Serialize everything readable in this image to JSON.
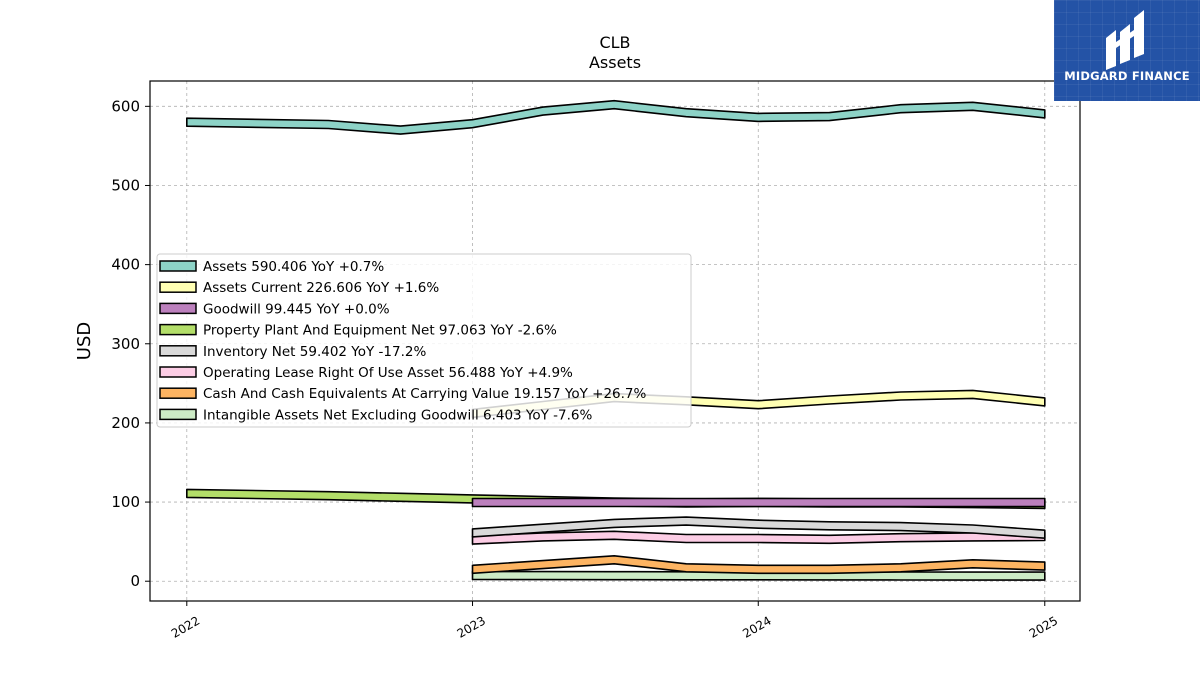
{
  "chart_data": {
    "type": "area",
    "title": "CLB",
    "subtitle": "Assets",
    "xlabel": "",
    "ylabel": "USD",
    "ylim": [
      -25,
      632
    ],
    "xlim": [
      "2021-11-15",
      "2025-02-15"
    ],
    "y_ticks": [
      0,
      100,
      200,
      300,
      400,
      500,
      600
    ],
    "x_ticks": [
      "2022",
      "2023",
      "2024",
      "2025"
    ],
    "grid": true,
    "legend_position": "center-left",
    "series": [
      {
        "name": "Assets",
        "legend": "Assets  590.406 YoY +0.7%",
        "color": "#8dd3c7",
        "x": [
          "2022-01-01",
          "2022-07-01",
          "2022-10-01",
          "2023-01-01",
          "2023-04-01",
          "2023-07-01",
          "2023-10-01",
          "2024-01-01",
          "2024-04-01",
          "2024-07-01",
          "2024-10-01",
          "2025-01-01"
        ],
        "values": [
          580,
          577,
          570,
          578,
          594,
          602,
          592,
          586,
          587,
          597,
          600,
          590.406
        ]
      },
      {
        "name": "Assets Current",
        "legend": "Assets Current  226.606 YoY +1.6%",
        "color": "#ffffb3",
        "x": [
          "2023-01-01",
          "2023-04-01",
          "2023-07-01",
          "2023-10-01",
          "2024-01-01",
          "2024-04-01",
          "2024-07-01",
          "2024-10-01",
          "2025-01-01"
        ],
        "values": [
          212,
          222,
          232,
          228,
          223,
          229,
          234,
          236,
          226.606
        ]
      },
      {
        "name": "Goodwill",
        "legend": "Goodwill  99.445 YoY +0.0%",
        "color": "#bc80bd",
        "x": [
          "2023-01-01",
          "2023-04-01",
          "2023-07-01",
          "2023-10-01",
          "2024-01-01",
          "2024-04-01",
          "2024-07-01",
          "2024-10-01",
          "2025-01-01"
        ],
        "values": [
          99.4,
          99.4,
          99.4,
          99.4,
          99.445,
          99.445,
          99.445,
          99.445,
          99.445
        ]
      },
      {
        "name": "Property Plant And Equipment Net",
        "legend": "Property Plant And Equipment Net  97.063 YoY -2.6%",
        "color": "#b3de69",
        "x": [
          "2022-01-01",
          "2022-07-01",
          "2022-10-01",
          "2023-01-01",
          "2023-04-01",
          "2023-07-01",
          "2023-10-01",
          "2024-01-01",
          "2024-04-01",
          "2024-07-01",
          "2024-10-01",
          "2025-01-01"
        ],
        "values": [
          111,
          108,
          106,
          104,
          102,
          100,
          99,
          99.6,
          99,
          99,
          98,
          97.063
        ]
      },
      {
        "name": "Inventory Net",
        "legend": "Inventory Net  59.402 YoY -17.2%",
        "color": "#d9d9d9",
        "x": [
          "2023-01-01",
          "2023-04-01",
          "2023-07-01",
          "2023-10-01",
          "2024-01-01",
          "2024-04-01",
          "2024-07-01",
          "2024-10-01",
          "2025-01-01"
        ],
        "values": [
          61,
          67,
          73,
          76,
          72,
          70,
          69,
          66,
          59.402
        ]
      },
      {
        "name": "Operating Lease Right Of Use Asset",
        "legend": "Operating Lease Right Of Use Asset  56.488 YoY +4.9%",
        "color": "#fccde5",
        "x": [
          "2023-01-01",
          "2023-04-01",
          "2023-07-01",
          "2023-10-01",
          "2024-01-01",
          "2024-04-01",
          "2024-07-01",
          "2024-10-01",
          "2025-01-01"
        ],
        "values": [
          52,
          56,
          58,
          54,
          54,
          53,
          55,
          56,
          56.488
        ]
      },
      {
        "name": "Cash And Cash Equivalents At Carrying Value",
        "legend": "Cash And Cash Equivalents At Carrying Value  19.157 YoY +26.7%",
        "color": "#fdb462",
        "x": [
          "2023-01-01",
          "2023-04-01",
          "2023-07-01",
          "2023-10-01",
          "2024-01-01",
          "2024-04-01",
          "2024-07-01",
          "2024-10-01",
          "2025-01-01"
        ],
        "values": [
          15,
          21,
          27,
          17,
          15,
          15,
          17,
          22,
          19.157
        ]
      },
      {
        "name": "Intangible Assets Net Excluding Goodwill",
        "legend": "Intangible Assets Net Excluding Goodwill  6.403 YoY -7.6%",
        "color": "#ccebc5",
        "x": [
          "2023-01-01",
          "2023-04-01",
          "2023-07-01",
          "2023-10-01",
          "2024-01-01",
          "2024-04-01",
          "2024-07-01",
          "2024-10-01",
          "2025-01-01"
        ],
        "values": [
          7.2,
          7.1,
          7.0,
          6.9,
          6.9,
          6.7,
          6.6,
          6.5,
          6.403
        ]
      }
    ]
  },
  "logo": {
    "text": "MIDGARD FINANCE",
    "background": "#2453a6"
  }
}
